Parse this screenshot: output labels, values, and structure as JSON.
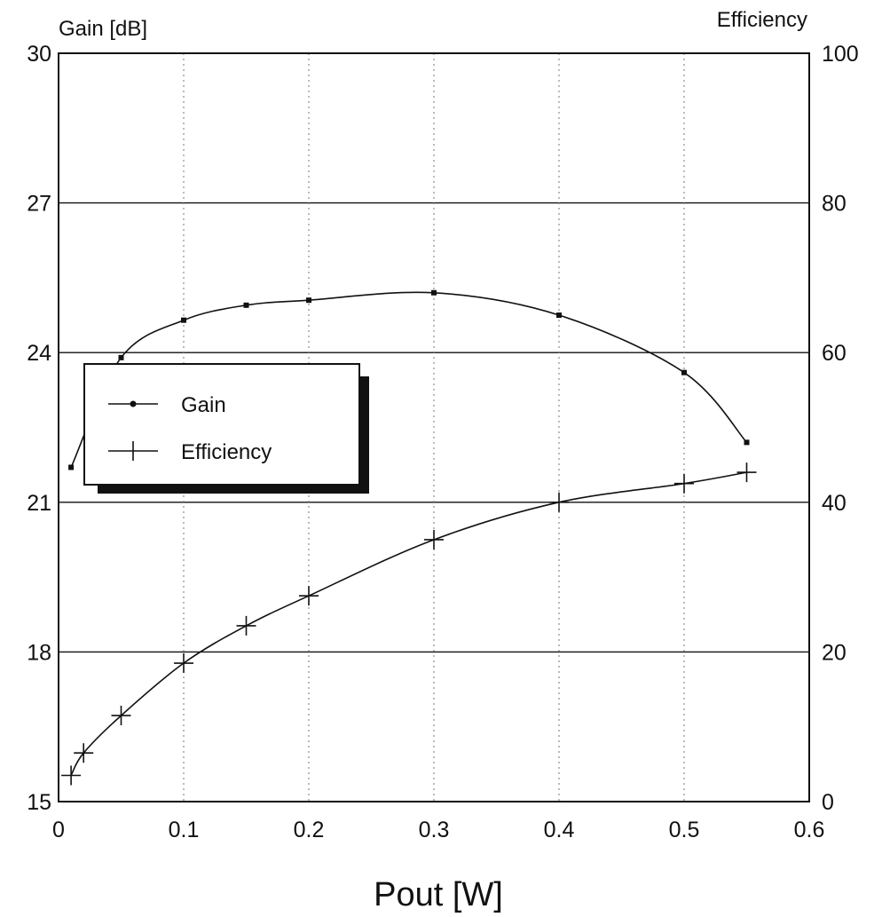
{
  "chart_data": {
    "type": "line",
    "title": "",
    "xlabel": "Pout [W]",
    "ylabel_left": "Gain [dB]",
    "ylabel_right": "Efficiency",
    "xlim": [
      0,
      0.6
    ],
    "ylim_left": [
      15,
      30
    ],
    "ylim_right": [
      0,
      100
    ],
    "x_ticks": [
      "0",
      "0.1",
      "0.2",
      "0.3",
      "0.4",
      "0.5",
      "0.6"
    ],
    "y_left_ticks": [
      "15",
      "18",
      "21",
      "24",
      "27",
      "30"
    ],
    "y_right_ticks": [
      "0",
      "20",
      "40",
      "60",
      "80",
      "100"
    ],
    "grid": "horizontal solid, vertical dotted",
    "legend_placement": "left",
    "series": [
      {
        "name": "Gain",
        "axis": "left",
        "marker": "dot",
        "points": [
          {
            "x": 0.01,
            "y": 21.7
          },
          {
            "x": 0.05,
            "y": 23.9
          },
          {
            "x": 0.1,
            "y": 24.65
          },
          {
            "x": 0.15,
            "y": 24.95
          },
          {
            "x": 0.2,
            "y": 25.05
          },
          {
            "x": 0.3,
            "y": 25.2
          },
          {
            "x": 0.4,
            "y": 24.75
          },
          {
            "x": 0.5,
            "y": 23.6
          },
          {
            "x": 0.55,
            "y": 22.2
          }
        ]
      },
      {
        "name": "Efficiency",
        "axis": "right",
        "marker": "plus",
        "points": [
          {
            "x": 0.01,
            "y": 3.5
          },
          {
            "x": 0.02,
            "y": 6.5
          },
          {
            "x": 0.05,
            "y": 11.5
          },
          {
            "x": 0.1,
            "y": 18.5
          },
          {
            "x": 0.15,
            "y": 23.5
          },
          {
            "x": 0.2,
            "y": 27.5
          },
          {
            "x": 0.3,
            "y": 35
          },
          {
            "x": 0.4,
            "y": 40
          },
          {
            "x": 0.5,
            "y": 42.5
          },
          {
            "x": 0.55,
            "y": 44
          }
        ]
      }
    ]
  }
}
